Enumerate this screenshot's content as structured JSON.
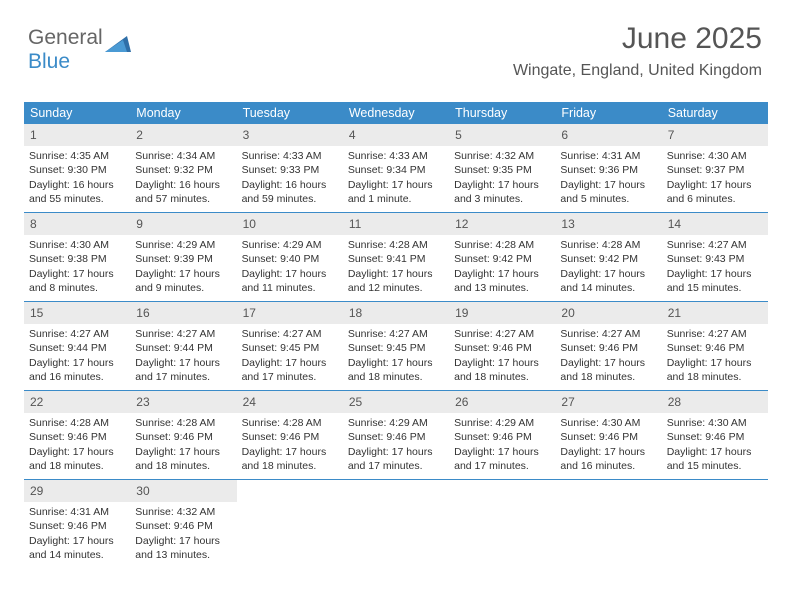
{
  "logo": {
    "text1": "General",
    "text2": "Blue"
  },
  "title": "June 2025",
  "location": "Wingate, England, United Kingdom",
  "colors": {
    "header_bg": "#3b8bc8",
    "header_text": "#ffffff",
    "daynum_bg": "#ebebeb",
    "text": "#333333",
    "border": "#3b8bc8"
  },
  "day_headers": [
    "Sunday",
    "Monday",
    "Tuesday",
    "Wednesday",
    "Thursday",
    "Friday",
    "Saturday"
  ],
  "weeks": [
    [
      {
        "n": "1",
        "sr": "Sunrise: 4:35 AM",
        "ss": "Sunset: 9:30 PM",
        "dl": "Daylight: 16 hours and 55 minutes."
      },
      {
        "n": "2",
        "sr": "Sunrise: 4:34 AM",
        "ss": "Sunset: 9:32 PM",
        "dl": "Daylight: 16 hours and 57 minutes."
      },
      {
        "n": "3",
        "sr": "Sunrise: 4:33 AM",
        "ss": "Sunset: 9:33 PM",
        "dl": "Daylight: 16 hours and 59 minutes."
      },
      {
        "n": "4",
        "sr": "Sunrise: 4:33 AM",
        "ss": "Sunset: 9:34 PM",
        "dl": "Daylight: 17 hours and 1 minute."
      },
      {
        "n": "5",
        "sr": "Sunrise: 4:32 AM",
        "ss": "Sunset: 9:35 PM",
        "dl": "Daylight: 17 hours and 3 minutes."
      },
      {
        "n": "6",
        "sr": "Sunrise: 4:31 AM",
        "ss": "Sunset: 9:36 PM",
        "dl": "Daylight: 17 hours and 5 minutes."
      },
      {
        "n": "7",
        "sr": "Sunrise: 4:30 AM",
        "ss": "Sunset: 9:37 PM",
        "dl": "Daylight: 17 hours and 6 minutes."
      }
    ],
    [
      {
        "n": "8",
        "sr": "Sunrise: 4:30 AM",
        "ss": "Sunset: 9:38 PM",
        "dl": "Daylight: 17 hours and 8 minutes."
      },
      {
        "n": "9",
        "sr": "Sunrise: 4:29 AM",
        "ss": "Sunset: 9:39 PM",
        "dl": "Daylight: 17 hours and 9 minutes."
      },
      {
        "n": "10",
        "sr": "Sunrise: 4:29 AM",
        "ss": "Sunset: 9:40 PM",
        "dl": "Daylight: 17 hours and 11 minutes."
      },
      {
        "n": "11",
        "sr": "Sunrise: 4:28 AM",
        "ss": "Sunset: 9:41 PM",
        "dl": "Daylight: 17 hours and 12 minutes."
      },
      {
        "n": "12",
        "sr": "Sunrise: 4:28 AM",
        "ss": "Sunset: 9:42 PM",
        "dl": "Daylight: 17 hours and 13 minutes."
      },
      {
        "n": "13",
        "sr": "Sunrise: 4:28 AM",
        "ss": "Sunset: 9:42 PM",
        "dl": "Daylight: 17 hours and 14 minutes."
      },
      {
        "n": "14",
        "sr": "Sunrise: 4:27 AM",
        "ss": "Sunset: 9:43 PM",
        "dl": "Daylight: 17 hours and 15 minutes."
      }
    ],
    [
      {
        "n": "15",
        "sr": "Sunrise: 4:27 AM",
        "ss": "Sunset: 9:44 PM",
        "dl": "Daylight: 17 hours and 16 minutes."
      },
      {
        "n": "16",
        "sr": "Sunrise: 4:27 AM",
        "ss": "Sunset: 9:44 PM",
        "dl": "Daylight: 17 hours and 17 minutes."
      },
      {
        "n": "17",
        "sr": "Sunrise: 4:27 AM",
        "ss": "Sunset: 9:45 PM",
        "dl": "Daylight: 17 hours and 17 minutes."
      },
      {
        "n": "18",
        "sr": "Sunrise: 4:27 AM",
        "ss": "Sunset: 9:45 PM",
        "dl": "Daylight: 17 hours and 18 minutes."
      },
      {
        "n": "19",
        "sr": "Sunrise: 4:27 AM",
        "ss": "Sunset: 9:46 PM",
        "dl": "Daylight: 17 hours and 18 minutes."
      },
      {
        "n": "20",
        "sr": "Sunrise: 4:27 AM",
        "ss": "Sunset: 9:46 PM",
        "dl": "Daylight: 17 hours and 18 minutes."
      },
      {
        "n": "21",
        "sr": "Sunrise: 4:27 AM",
        "ss": "Sunset: 9:46 PM",
        "dl": "Daylight: 17 hours and 18 minutes."
      }
    ],
    [
      {
        "n": "22",
        "sr": "Sunrise: 4:28 AM",
        "ss": "Sunset: 9:46 PM",
        "dl": "Daylight: 17 hours and 18 minutes."
      },
      {
        "n": "23",
        "sr": "Sunrise: 4:28 AM",
        "ss": "Sunset: 9:46 PM",
        "dl": "Daylight: 17 hours and 18 minutes."
      },
      {
        "n": "24",
        "sr": "Sunrise: 4:28 AM",
        "ss": "Sunset: 9:46 PM",
        "dl": "Daylight: 17 hours and 18 minutes."
      },
      {
        "n": "25",
        "sr": "Sunrise: 4:29 AM",
        "ss": "Sunset: 9:46 PM",
        "dl": "Daylight: 17 hours and 17 minutes."
      },
      {
        "n": "26",
        "sr": "Sunrise: 4:29 AM",
        "ss": "Sunset: 9:46 PM",
        "dl": "Daylight: 17 hours and 17 minutes."
      },
      {
        "n": "27",
        "sr": "Sunrise: 4:30 AM",
        "ss": "Sunset: 9:46 PM",
        "dl": "Daylight: 17 hours and 16 minutes."
      },
      {
        "n": "28",
        "sr": "Sunrise: 4:30 AM",
        "ss": "Sunset: 9:46 PM",
        "dl": "Daylight: 17 hours and 15 minutes."
      }
    ],
    [
      {
        "n": "29",
        "sr": "Sunrise: 4:31 AM",
        "ss": "Sunset: 9:46 PM",
        "dl": "Daylight: 17 hours and 14 minutes."
      },
      {
        "n": "30",
        "sr": "Sunrise: 4:32 AM",
        "ss": "Sunset: 9:46 PM",
        "dl": "Daylight: 17 hours and 13 minutes."
      },
      {
        "empty": true
      },
      {
        "empty": true
      },
      {
        "empty": true
      },
      {
        "empty": true
      },
      {
        "empty": true
      }
    ]
  ]
}
